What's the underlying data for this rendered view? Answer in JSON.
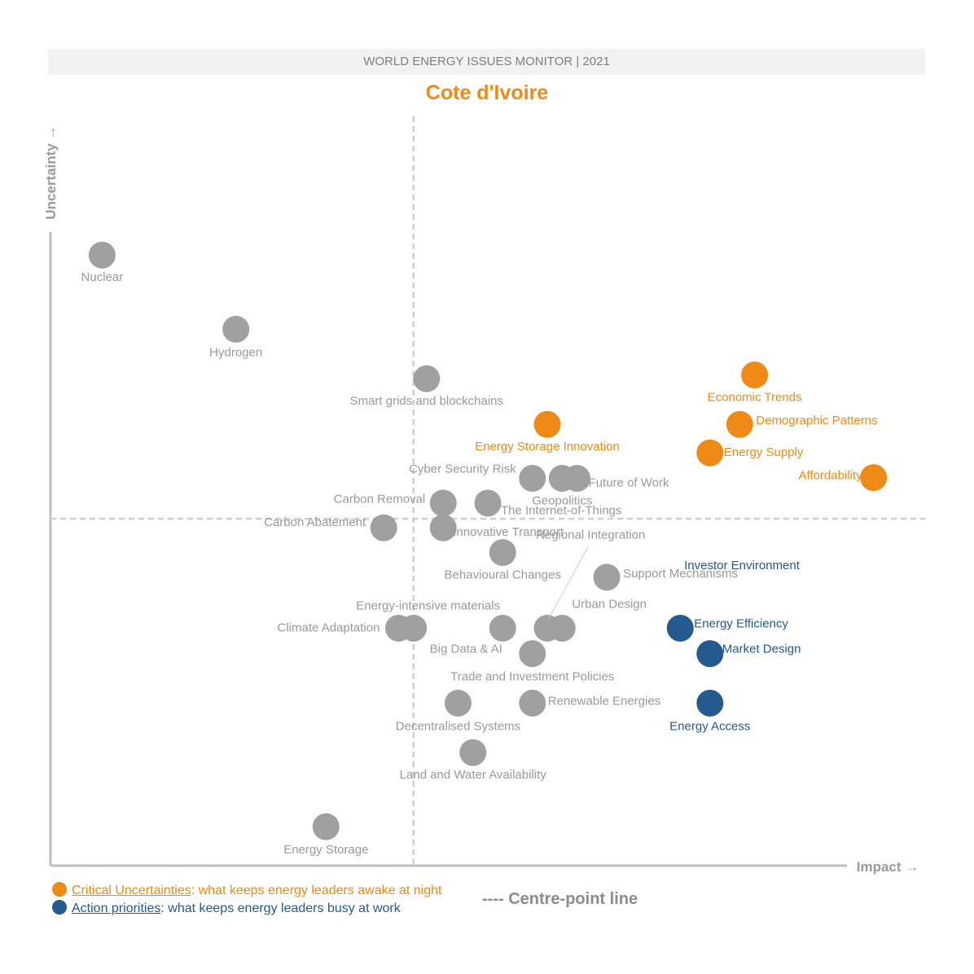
{
  "header": {
    "banner": "WORLD ENERGY ISSUES MONITOR | 2021",
    "country": "Cote d'Ivoire"
  },
  "axes": {
    "y_label": "Uncertainty →",
    "x_label": "Impact →"
  },
  "legend": {
    "critical_term": "Critical Uncertainties",
    "critical_desc": ": what keeps energy leaders awake at night",
    "action_term": "Action priorities",
    "action_desc": ": what keeps energy leaders busy at work",
    "centre_line": "---- Centre-point line"
  },
  "colors": {
    "critical": "#ef8a17",
    "action": "#245a8d",
    "other": "#a0a0a0",
    "axis": "#bfbfbf",
    "centre_line": "#cfcfcf"
  },
  "chart_data": {
    "type": "scatter",
    "title": "Cote d'Ivoire",
    "xlabel": "Impact",
    "ylabel": "Uncertainty",
    "xlim": [
      0,
      1
    ],
    "ylim": [
      0,
      1
    ],
    "centre": {
      "x": 0.415,
      "y": 0.463
    },
    "grid": false,
    "series": [
      {
        "category": "critical",
        "points": [
          {
            "label": "Economic Trends",
            "x": 0.805,
            "y": 0.655
          },
          {
            "label": "Demographic Patterns",
            "x": 0.788,
            "y": 0.589
          },
          {
            "label": "Energy Supply",
            "x": 0.754,
            "y": 0.551
          },
          {
            "label": "Affordability",
            "x": 0.941,
            "y": 0.518
          },
          {
            "label": "Energy Storage Innovation",
            "x": 0.568,
            "y": 0.589
          }
        ]
      },
      {
        "category": "action",
        "points": [
          {
            "label": "Energy Efficiency",
            "x": 0.72,
            "y": 0.317
          },
          {
            "label": "Market Design",
            "x": 0.754,
            "y": 0.283
          },
          {
            "label": "Energy Access",
            "x": 0.754,
            "y": 0.217
          }
        ]
      },
      {
        "category": "other",
        "points": [
          {
            "label": "Nuclear",
            "x": 0.059,
            "y": 0.815
          },
          {
            "label": "Hydrogen",
            "x": 0.212,
            "y": 0.716
          },
          {
            "label": "Smart grids and blockchains",
            "x": 0.43,
            "y": 0.65
          },
          {
            "label": "Cyber Security Risk",
            "x": 0.551,
            "y": 0.517
          },
          {
            "label": "Geopolitics",
            "x": 0.585,
            "y": 0.517
          },
          {
            "label": "Future of Work",
            "x": 0.602,
            "y": 0.517
          },
          {
            "label": "Carbon Removal",
            "x": 0.449,
            "y": 0.484
          },
          {
            "label": "The Internet-of-Things",
            "x": 0.5,
            "y": 0.484
          },
          {
            "label": "Carbon Abatement",
            "x": 0.381,
            "y": 0.451
          },
          {
            "label": "Innovative Transport",
            "x": 0.449,
            "y": 0.451
          },
          {
            "label": "Regional Integration",
            "x": 0.568,
            "y": 0.317
          },
          {
            "label": "Behavioural Changes",
            "x": 0.517,
            "y": 0.418
          },
          {
            "label": "Support Mechanisms",
            "x": 0.636,
            "y": 0.385
          },
          {
            "label": "Energy-intensive materials",
            "x": 0.415,
            "y": 0.317
          },
          {
            "label": "Climate Adaptation",
            "x": 0.398,
            "y": 0.317
          },
          {
            "label": "Big Data & AI",
            "x": 0.517,
            "y": 0.317
          },
          {
            "label": "Urban Design",
            "x": 0.585,
            "y": 0.317
          },
          {
            "label": "Trade and Investment Policies",
            "x": 0.551,
            "y": 0.283
          },
          {
            "label": "Decentralised Systems",
            "x": 0.466,
            "y": 0.217
          },
          {
            "label": "Renewable Energies",
            "x": 0.551,
            "y": 0.217
          },
          {
            "label": "Land and Water Availability",
            "x": 0.483,
            "y": 0.151
          },
          {
            "label": "Energy Storage",
            "x": 0.315,
            "y": 0.052
          }
        ]
      }
    ],
    "annotations": [
      {
        "label": "Investor Environment",
        "category": "action"
      }
    ]
  }
}
